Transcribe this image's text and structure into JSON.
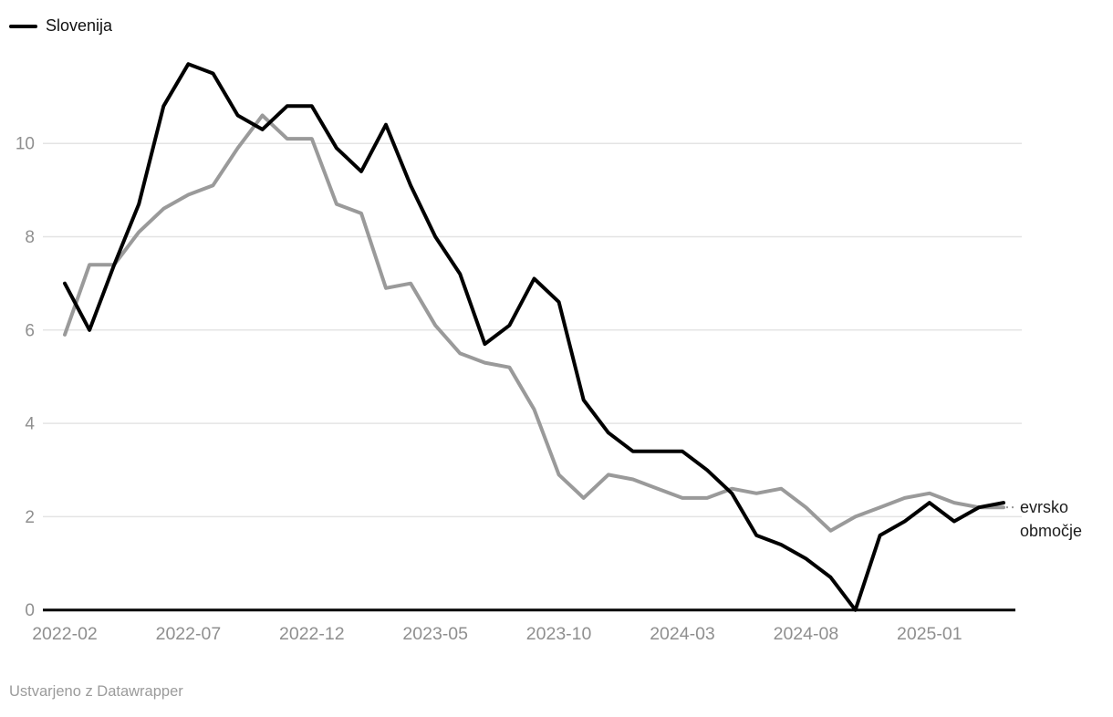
{
  "legend": {
    "label": "Slovenija"
  },
  "direct_label": {
    "series": "evrsko območje",
    "lines": [
      "evrsko",
      "območje"
    ]
  },
  "footer": {
    "credit": "Ustvarjeno z Datawrapper"
  },
  "colors": {
    "slovenija_line": "#000000",
    "evrsko_line": "#9a9a9a",
    "gridline": "#e4e4e4",
    "axis": "#000000",
    "tick_text": "#8f8f8f",
    "direct_label_text": "#1d1d1d",
    "connector_dots": "#999999",
    "footer_text": "#9b9b9b"
  },
  "chart_data": {
    "type": "line",
    "title": "",
    "xlabel": "",
    "ylabel": "",
    "grid": "horizontal",
    "legend_position": "top-left",
    "ylim": [
      0,
      12
    ],
    "yticks": [
      0,
      2,
      4,
      6,
      8,
      10
    ],
    "xticks": [
      "2022-02",
      "2022-07",
      "2022-12",
      "2023-05",
      "2023-10",
      "2024-03",
      "2024-08",
      "2025-01"
    ],
    "x": [
      "2022-02",
      "2022-03",
      "2022-04",
      "2022-05",
      "2022-06",
      "2022-07",
      "2022-08",
      "2022-09",
      "2022-10",
      "2022-11",
      "2022-12",
      "2023-01",
      "2023-02",
      "2023-03",
      "2023-04",
      "2023-05",
      "2023-06",
      "2023-07",
      "2023-08",
      "2023-09",
      "2023-10",
      "2023-11",
      "2023-12",
      "2024-01",
      "2024-02",
      "2024-03",
      "2024-04",
      "2024-05",
      "2024-06",
      "2024-07",
      "2024-08",
      "2024-09",
      "2024-10",
      "2024-11",
      "2024-12",
      "2025-01",
      "2025-02",
      "2025-03",
      "2025-04"
    ],
    "series": [
      {
        "name": "Slovenija",
        "color": "#000000",
        "values": [
          7.0,
          6.0,
          7.4,
          8.7,
          10.8,
          11.7,
          11.5,
          10.6,
          10.3,
          10.8,
          10.8,
          9.9,
          9.4,
          10.4,
          9.1,
          8.0,
          7.2,
          5.7,
          6.1,
          7.1,
          6.6,
          4.5,
          3.8,
          3.4,
          3.4,
          3.4,
          3.0,
          2.5,
          1.6,
          1.4,
          1.1,
          0.7,
          0.0,
          1.6,
          1.9,
          2.3,
          1.9,
          2.2,
          2.3
        ]
      },
      {
        "name": "evrsko območje",
        "color": "#9a9a9a",
        "values": [
          5.9,
          7.4,
          7.4,
          8.1,
          8.6,
          8.9,
          9.1,
          9.9,
          10.6,
          10.1,
          10.1,
          8.7,
          8.5,
          6.9,
          7.0,
          6.1,
          5.5,
          5.3,
          5.2,
          4.3,
          2.9,
          2.4,
          2.9,
          2.8,
          2.6,
          2.4,
          2.4,
          2.6,
          2.5,
          2.6,
          2.2,
          1.7,
          2.0,
          2.2,
          2.4,
          2.5,
          2.3,
          2.2,
          2.2
        ]
      }
    ]
  }
}
